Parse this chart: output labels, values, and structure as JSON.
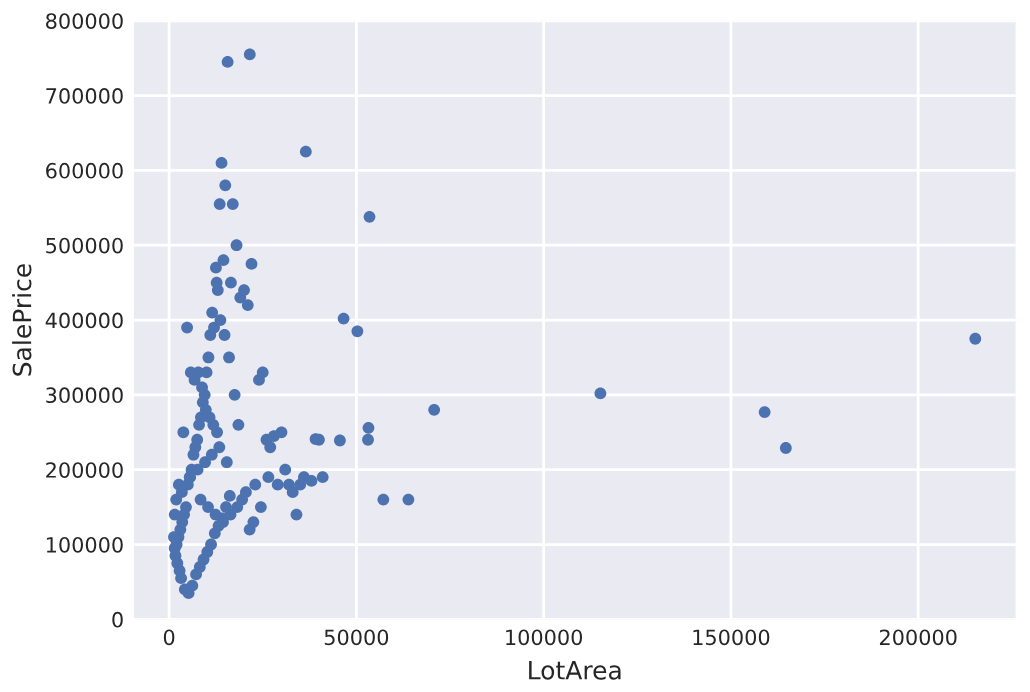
{
  "chart_data": {
    "type": "scatter",
    "xlabel": "LotArea",
    "ylabel": "SalePrice",
    "xlim": [
      -9400,
      226000
    ],
    "ylim": [
      0,
      800000
    ],
    "xticks": [
      0,
      50000,
      100000,
      150000,
      200000
    ],
    "yticks": [
      0,
      100000,
      200000,
      300000,
      400000,
      500000,
      600000,
      700000,
      800000
    ],
    "grid": true,
    "marker": "circle",
    "legend": false,
    "series": [
      {
        "color": "#4c72b0",
        "x": [
          215245,
          164660,
          159000,
          115149,
          70761,
          63887,
          57200,
          53504,
          53227,
          53107,
          50271,
          46589,
          45600,
          39104,
          36500,
          21535,
          15623,
          14000,
          15000,
          13500,
          17000,
          18000,
          12500,
          14500,
          16500,
          19000,
          20000,
          21000,
          22000,
          24000,
          25000,
          26000,
          28000,
          30000,
          31000,
          33000,
          34000,
          35000,
          36000,
          38000,
          40000,
          41000,
          23000,
          27000,
          29000,
          32000,
          19500,
          21500,
          22500,
          17500,
          16000,
          18500,
          13000,
          12000,
          11500,
          11000,
          10500,
          10000,
          9500,
          9000,
          8500,
          8000,
          7500,
          7000,
          6500,
          6000,
          5500,
          5000,
          4500,
          4000,
          3500,
          3000,
          2500,
          2000,
          1500,
          1300,
          1700,
          2200,
          2800,
          3200,
          4200,
          5200,
          6200,
          7200,
          8200,
          9200,
          10200,
          11200,
          12200,
          13200,
          14200,
          15200,
          16200,
          6800,
          7800,
          8800,
          9800,
          10800,
          11800,
          12800,
          4800,
          5800,
          3800,
          2600,
          1900,
          1500,
          9600,
          11400,
          13400,
          15400,
          7600,
          5600,
          3400,
          8400,
          10400,
          12400,
          14400,
          16400,
          18200,
          20500,
          24500,
          26500,
          13700,
          14800,
          12700
        ],
        "values": [
          375000,
          229000,
          277000,
          302000,
          280000,
          160000,
          160000,
          538000,
          256000,
          240000,
          385000,
          402000,
          239000,
          241000,
          625000,
          755000,
          745000,
          610000,
          580000,
          555000,
          555000,
          500000,
          470000,
          480000,
          450000,
          430000,
          440000,
          420000,
          475000,
          320000,
          330000,
          240000,
          245000,
          250000,
          200000,
          170000,
          140000,
          180000,
          190000,
          185000,
          240000,
          190000,
          180000,
          230000,
          180000,
          180000,
          160000,
          120000,
          130000,
          300000,
          350000,
          260000,
          440000,
          390000,
          410000,
          380000,
          350000,
          330000,
          300000,
          290000,
          270000,
          260000,
          240000,
          230000,
          220000,
          200000,
          190000,
          180000,
          150000,
          140000,
          130000,
          120000,
          110000,
          100000,
          95000,
          110000,
          85000,
          75000,
          65000,
          55000,
          40000,
          35000,
          45000,
          60000,
          70000,
          80000,
          90000,
          100000,
          115000,
          125000,
          135000,
          150000,
          165000,
          320000,
          330000,
          310000,
          280000,
          270000,
          260000,
          250000,
          390000,
          330000,
          250000,
          180000,
          160000,
          140000,
          210000,
          220000,
          230000,
          210000,
          200000,
          190000,
          170000,
          160000,
          150000,
          140000,
          130000,
          140000,
          150000,
          170000,
          150000,
          190000,
          400000,
          380000,
          450000
        ]
      }
    ]
  }
}
